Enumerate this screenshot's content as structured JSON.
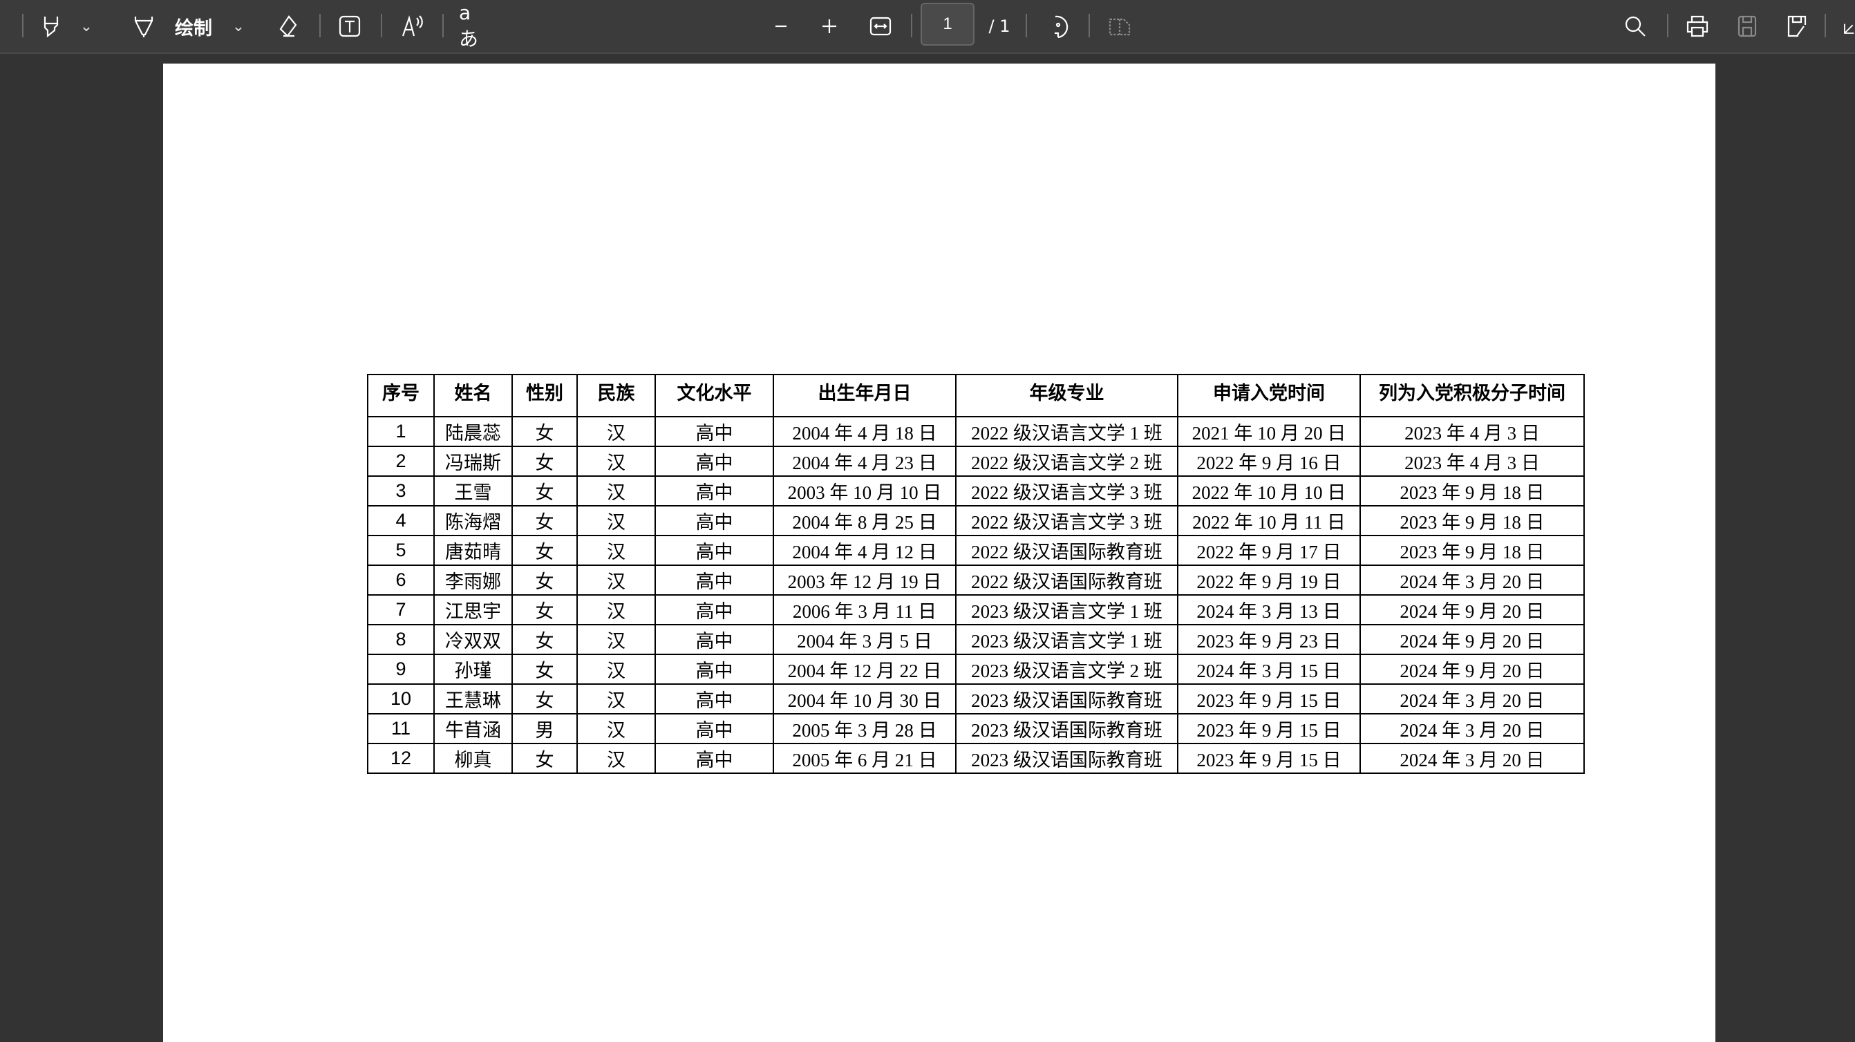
{
  "toolbar": {
    "draw_label": "绘制",
    "translate_label": "aあ",
    "page_current": "1",
    "page_total": "/ 1",
    "icons": [
      "menu-icon",
      "highlighter-icon",
      "draw-icon",
      "eraser-icon",
      "text-box-icon",
      "read-aloud-icon",
      "translate-icon",
      "zoom-out-icon",
      "zoom-in-icon",
      "fit-width-icon",
      "rotate-icon",
      "two-page-icon",
      "search-icon",
      "print-icon",
      "save-icon",
      "save-as-icon",
      "more-icon"
    ]
  },
  "table": {
    "headers": [
      "序号",
      "姓名",
      "性别",
      "民族",
      "文化水平",
      "出生年月日",
      "年级专业",
      "申请入党时间",
      "列为入党积极分子时间"
    ],
    "rows": [
      [
        "1",
        "陆晨蕊",
        "女",
        "汉",
        "高中",
        "2004 年 4 月 18 日",
        "2022 级汉语言文学 1 班",
        "2021 年 10 月 20 日",
        "2023 年 4 月 3 日"
      ],
      [
        "2",
        "冯瑞斯",
        "女",
        "汉",
        "高中",
        "2004 年 4 月 23 日",
        "2022 级汉语言文学 2 班",
        "2022 年 9 月 16 日",
        "2023 年 4 月 3 日"
      ],
      [
        "3",
        "王雪",
        "女",
        "汉",
        "高中",
        "2003 年 10 月 10 日",
        "2022 级汉语言文学 3 班",
        "2022 年 10 月 10 日",
        "2023 年 9 月 18 日"
      ],
      [
        "4",
        "陈海熠",
        "女",
        "汉",
        "高中",
        "2004 年 8 月 25 日",
        "2022 级汉语言文学 3 班",
        "2022 年 10 月 11 日",
        "2023 年 9 月 18 日"
      ],
      [
        "5",
        "唐茹晴",
        "女",
        "汉",
        "高中",
        "2004 年 4 月 12 日",
        "2022 级汉语国际教育班",
        "2022 年 9 月 17 日",
        "2023 年 9 月 18 日"
      ],
      [
        "6",
        "李雨娜",
        "女",
        "汉",
        "高中",
        "2003 年 12 月 19 日",
        "2022 级汉语国际教育班",
        "2022 年 9 月 19 日",
        "2024 年 3 月 20 日"
      ],
      [
        "7",
        "江思宇",
        "女",
        "汉",
        "高中",
        "2006 年 3 月 11 日",
        "2023 级汉语言文学 1 班",
        "2024 年 3 月 13 日",
        "2024 年 9 月 20 日"
      ],
      [
        "8",
        "冷双双",
        "女",
        "汉",
        "高中",
        "2004 年 3 月 5 日",
        "2023 级汉语言文学 1 班",
        "2023 年 9 月 23 日",
        "2024 年 9 月 20 日"
      ],
      [
        "9",
        "孙瑾",
        "女",
        "汉",
        "高中",
        "2004 年 12 月 22 日",
        "2023 级汉语言文学 2 班",
        "2024 年 3 月 15 日",
        "2024 年 9 月 20 日"
      ],
      [
        "10",
        "王慧琳",
        "女",
        "汉",
        "高中",
        "2004 年 10 月 30 日",
        "2023 级汉语国际教育班",
        "2023 年 9 月 15 日",
        "2024 年 3 月 20 日"
      ],
      [
        "11",
        "牛苜涵",
        "男",
        "汉",
        "高中",
        "2005 年 3 月 28 日",
        "2023 级汉语国际教育班",
        "2023 年 9 月 15 日",
        "2024 年 3 月 20 日"
      ],
      [
        "12",
        "柳真",
        "女",
        "汉",
        "高中",
        "2005 年 6 月 21 日",
        "2023 级汉语国际教育班",
        "2023 年 9 月 15 日",
        "2024 年 3 月 20 日"
      ]
    ]
  }
}
